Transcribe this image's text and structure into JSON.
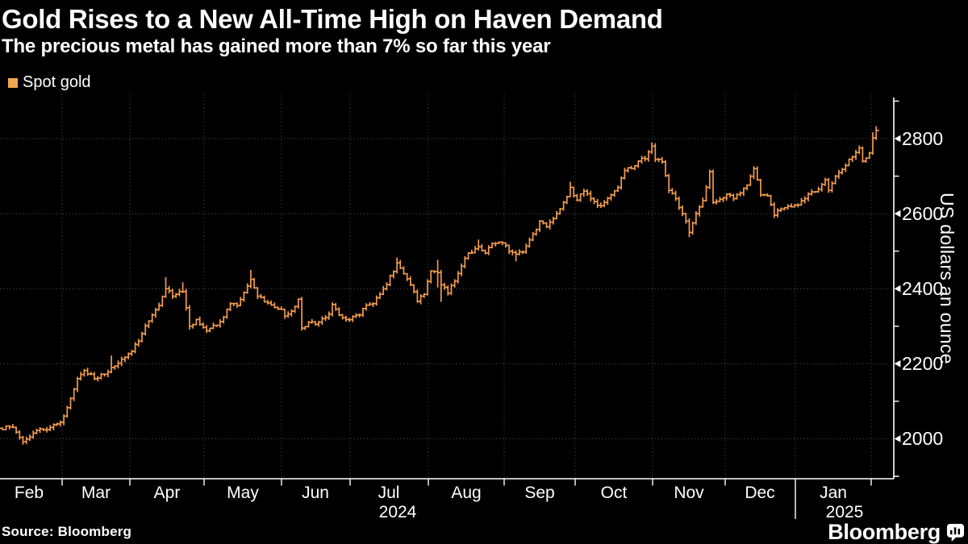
{
  "header": {
    "title": "Gold Rises to a New All-Time High on Haven Demand",
    "subtitle": "The precious metal has gained more than 7% so far this year"
  },
  "legend": {
    "label": "Spot gold",
    "swatch_color": "#F3A64F"
  },
  "source_note": "Source: Bloomberg",
  "branding": {
    "logo_text": "Bloomberg"
  },
  "chart_data": {
    "type": "ohlc-bar",
    "title": "Gold Rises to a New All-Time High on Haven Demand",
    "subtitle": "The precious metal has gained more than 7% so far this year",
    "series_name": "Spot gold",
    "ylabel": "US dollars an ounce",
    "ylim": [
      1900,
      2900
    ],
    "y_ticks": [
      2800,
      2600,
      2400,
      2200,
      2000
    ],
    "y_minor_ticks": [
      2900,
      2700,
      2500,
      2300,
      2100,
      1900
    ],
    "x_month_labels": [
      "Feb",
      "Mar",
      "Apr",
      "May",
      "Jun",
      "Jul",
      "Aug",
      "Sep",
      "Oct",
      "Nov",
      "Dec",
      "Jan"
    ],
    "x_year_labels": [
      "2024",
      "2025"
    ],
    "grid": true,
    "legend_position": "top-left",
    "colors": {
      "bar": "#F29B4D",
      "grid_h": "#5A5A5A",
      "grid_v": "#4F4F4F",
      "axis": "#FFFFFF",
      "background": "#000000",
      "text": "#FFFFFF"
    },
    "anchors_format": "[trading_day_index_from_2024-02-01, close, high_or_null, low_or_null] in US dollars an ounce",
    "anchors": [
      [
        0,
        2040,
        null,
        null
      ],
      [
        2,
        2028,
        null,
        null
      ],
      [
        6,
        2030,
        null,
        null
      ],
      [
        9,
        1992,
        null,
        1984
      ],
      [
        13,
        2022,
        null,
        null
      ],
      [
        17,
        2030,
        null,
        null
      ],
      [
        20,
        2044,
        null,
        null
      ],
      [
        22,
        2083,
        null,
        null
      ],
      [
        25,
        2160,
        null,
        null
      ],
      [
        27,
        2182,
        null,
        null
      ],
      [
        30,
        2160,
        null,
        null
      ],
      [
        33,
        2172,
        null,
        null
      ],
      [
        35,
        2190,
        2222,
        null
      ],
      [
        38,
        2212,
        null,
        null
      ],
      [
        41,
        2233,
        null,
        null
      ],
      [
        44,
        2280,
        null,
        null
      ],
      [
        47,
        2330,
        null,
        null
      ],
      [
        49,
        2355,
        null,
        null
      ],
      [
        51,
        2400,
        2431,
        null
      ],
      [
        53,
        2380,
        null,
        null
      ],
      [
        56,
        2392,
        2417,
        null
      ],
      [
        58,
        2300,
        null,
        2291
      ],
      [
        60,
        2318,
        null,
        null
      ],
      [
        63,
        2288,
        null,
        null
      ],
      [
        65,
        2302,
        null,
        null
      ],
      [
        67,
        2312,
        null,
        null
      ],
      [
        69,
        2345,
        null,
        null
      ],
      [
        70,
        2360,
        null,
        null
      ],
      [
        72,
        2355,
        null,
        null
      ],
      [
        74,
        2390,
        null,
        null
      ],
      [
        76,
        2425,
        2450,
        null
      ],
      [
        78,
        2380,
        null,
        null
      ],
      [
        80,
        2365,
        null,
        null
      ],
      [
        83,
        2350,
        null,
        null
      ],
      [
        85,
        2345,
        null,
        null
      ],
      [
        86,
        2327,
        null,
        null
      ],
      [
        88,
        2340,
        null,
        null
      ],
      [
        90,
        2372,
        null,
        null
      ],
      [
        91,
        2295,
        null,
        2288
      ],
      [
        93,
        2310,
        null,
        null
      ],
      [
        95,
        2305,
        null,
        null
      ],
      [
        97,
        2320,
        null,
        null
      ],
      [
        99,
        2332,
        null,
        null
      ],
      [
        100,
        2358,
        null,
        null
      ],
      [
        102,
        2330,
        null,
        null
      ],
      [
        104,
        2318,
        null,
        null
      ],
      [
        106,
        2326,
        null,
        null
      ],
      [
        108,
        2330,
        null,
        null
      ],
      [
        110,
        2356,
        null,
        null
      ],
      [
        112,
        2360,
        null,
        null
      ],
      [
        114,
        2385,
        null,
        null
      ],
      [
        116,
        2411,
        null,
        null
      ],
      [
        119,
        2469,
        2483,
        null
      ],
      [
        121,
        2440,
        null,
        null
      ],
      [
        123,
        2410,
        null,
        null
      ],
      [
        125,
        2366,
        null,
        null
      ],
      [
        127,
        2385,
        null,
        null
      ],
      [
        129,
        2447,
        null,
        null
      ],
      [
        131,
        2443,
        2477,
        2403
      ],
      [
        132,
        2410,
        null,
        2365
      ],
      [
        134,
        2388,
        null,
        null
      ],
      [
        136,
        2420,
        null,
        null
      ],
      [
        138,
        2460,
        null,
        null
      ],
      [
        140,
        2495,
        null,
        null
      ],
      [
        143,
        2512,
        2531,
        null
      ],
      [
        145,
        2495,
        null,
        null
      ],
      [
        147,
        2520,
        null,
        null
      ],
      [
        150,
        2522,
        null,
        null
      ],
      [
        152,
        2500,
        null,
        null
      ],
      [
        154,
        2492,
        null,
        2473
      ],
      [
        156,
        2498,
        null,
        null
      ],
      [
        158,
        2530,
        null,
        null
      ],
      [
        160,
        2558,
        null,
        null
      ],
      [
        161,
        2580,
        null,
        null
      ],
      [
        163,
        2565,
        null,
        null
      ],
      [
        166,
        2600,
        null,
        null
      ],
      [
        168,
        2630,
        null,
        null
      ],
      [
        170,
        2670,
        2685,
        null
      ],
      [
        172,
        2636,
        null,
        null
      ],
      [
        174,
        2660,
        null,
        null
      ],
      [
        176,
        2640,
        null,
        null
      ],
      [
        178,
        2622,
        null,
        null
      ],
      [
        180,
        2630,
        null,
        null
      ],
      [
        182,
        2650,
        null,
        null
      ],
      [
        184,
        2670,
        null,
        null
      ],
      [
        186,
        2715,
        null,
        null
      ],
      [
        188,
        2720,
        null,
        null
      ],
      [
        190,
        2740,
        null,
        null
      ],
      [
        192,
        2746,
        null,
        null
      ],
      [
        194,
        2780,
        2790,
        null
      ],
      [
        195,
        2745,
        null,
        null
      ],
      [
        197,
        2738,
        null,
        null
      ],
      [
        199,
        2662,
        null,
        null
      ],
      [
        201,
        2640,
        null,
        null
      ],
      [
        203,
        2600,
        null,
        null
      ],
      [
        205,
        2550,
        null,
        2537
      ],
      [
        207,
        2600,
        null,
        null
      ],
      [
        209,
        2635,
        null,
        null
      ],
      [
        211,
        2712,
        null,
        null
      ],
      [
        212,
        2630,
        null,
        null
      ],
      [
        214,
        2638,
        null,
        null
      ],
      [
        216,
        2652,
        null,
        null
      ],
      [
        218,
        2640,
        null,
        null
      ],
      [
        220,
        2655,
        null,
        null
      ],
      [
        222,
        2676,
        null,
        null
      ],
      [
        224,
        2720,
        null,
        null
      ],
      [
        226,
        2650,
        null,
        null
      ],
      [
        228,
        2648,
        null,
        null
      ],
      [
        230,
        2596,
        null,
        null
      ],
      [
        232,
        2612,
        null,
        null
      ],
      [
        234,
        2620,
        null,
        null
      ],
      [
        237,
        2623,
        null,
        null
      ],
      [
        239,
        2640,
        null,
        null
      ],
      [
        241,
        2658,
        null,
        null
      ],
      [
        243,
        2665,
        null,
        null
      ],
      [
        245,
        2690,
        null,
        null
      ],
      [
        246,
        2662,
        null,
        null
      ],
      [
        248,
        2700,
        null,
        null
      ],
      [
        250,
        2718,
        null,
        null
      ],
      [
        252,
        2745,
        null,
        null
      ],
      [
        254,
        2763,
        null,
        null
      ],
      [
        255,
        2775,
        null,
        null
      ],
      [
        256,
        2740,
        null,
        null
      ],
      [
        257,
        2748,
        null,
        null
      ],
      [
        258,
        2762,
        null,
        null
      ],
      [
        259,
        2802,
        2817,
        null
      ],
      [
        260,
        2822,
        2833,
        null
      ]
    ]
  }
}
